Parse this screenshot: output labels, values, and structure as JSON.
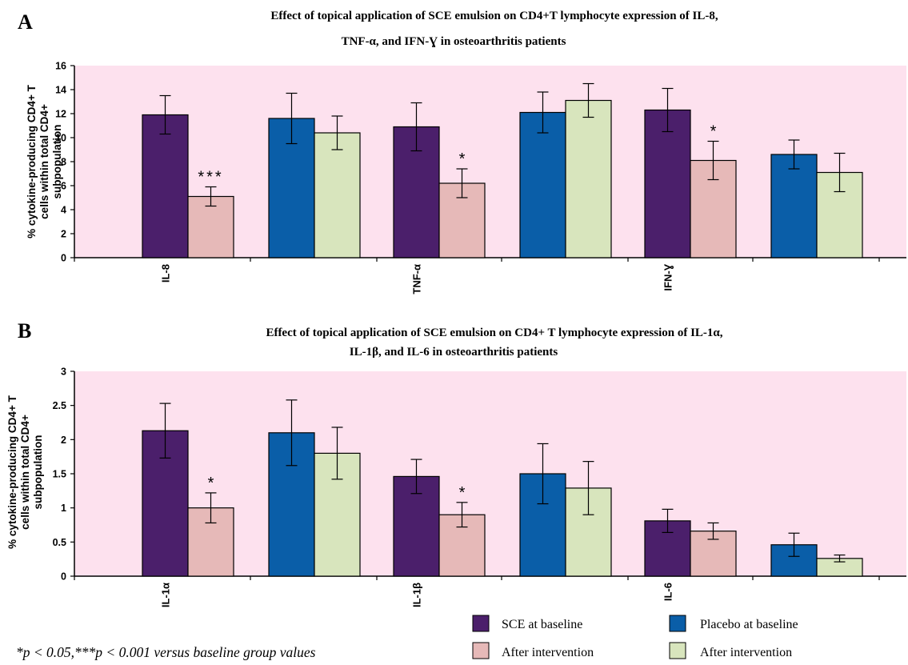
{
  "chart_data": [
    {
      "type": "bar",
      "panel": "A",
      "title": "Effect of topical application of SCE emulsion  on CD4+T lymphocyte expression of IL-8,",
      "title_line2": "TNF-α, and IFN-Ɣ in osteoarthritis patients",
      "ylabel": [
        "% cytokine-producing CD4+ T",
        "cells within total CD4+",
        "subpopulation"
      ],
      "ylim": [
        0,
        16
      ],
      "yticks": [
        "0",
        "2",
        "4",
        "6",
        "8",
        "10",
        "12",
        "14",
        "16"
      ],
      "tick_values": [
        0,
        2,
        4,
        6,
        8,
        10,
        12,
        14,
        16
      ],
      "categories": [
        "IL-8",
        "",
        "TNF-α",
        "",
        "IFN-Ɣ",
        ""
      ],
      "bars": [
        {
          "group": 0,
          "slot": 0,
          "series": 0,
          "value": 11.9,
          "err": 1.6,
          "sig": ""
        },
        {
          "group": 0,
          "slot": 1,
          "series": 1,
          "value": 5.1,
          "err": 0.8,
          "sig": "***"
        },
        {
          "group": 1,
          "slot": 0,
          "series": 2,
          "value": 11.6,
          "err": 2.1,
          "sig": ""
        },
        {
          "group": 1,
          "slot": 1,
          "series": 3,
          "value": 10.4,
          "err": 1.4,
          "sig": ""
        },
        {
          "group": 2,
          "slot": 0,
          "series": 0,
          "value": 10.9,
          "err": 2.0,
          "sig": ""
        },
        {
          "group": 2,
          "slot": 1,
          "series": 1,
          "value": 6.2,
          "err": 1.2,
          "sig": "*"
        },
        {
          "group": 3,
          "slot": 0,
          "series": 2,
          "value": 12.1,
          "err": 1.7,
          "sig": ""
        },
        {
          "group": 3,
          "slot": 1,
          "series": 3,
          "value": 13.1,
          "err": 1.4,
          "sig": ""
        },
        {
          "group": 4,
          "slot": 0,
          "series": 0,
          "value": 12.3,
          "err": 1.8,
          "sig": ""
        },
        {
          "group": 4,
          "slot": 1,
          "series": 1,
          "value": 8.1,
          "err": 1.6,
          "sig": "*"
        },
        {
          "group": 5,
          "slot": 0,
          "series": 2,
          "value": 8.6,
          "err": 1.2,
          "sig": ""
        },
        {
          "group": 5,
          "slot": 1,
          "series": 3,
          "value": 7.1,
          "err": 1.6,
          "sig": ""
        }
      ]
    },
    {
      "type": "bar",
      "panel": "B",
      "title": "Effect of topical application of SCE emulsion on CD4+ T lymphocyte expression of IL-1α,",
      "title_line2": "IL-1β, and IL-6 in osteoarthritis patients",
      "ylabel": [
        "% cytokine-producing CD4+ T",
        "cells within total CD4+",
        "subpopulation"
      ],
      "ylim": [
        0,
        3
      ],
      "yticks": [
        "0",
        "0.5",
        "1",
        "1.5",
        "2",
        "2.5",
        "3"
      ],
      "tick_values": [
        0,
        0.5,
        1,
        1.5,
        2,
        2.5,
        3
      ],
      "categories": [
        "IL-1α",
        "",
        "IL-1β",
        "",
        "IL-6",
        ""
      ],
      "bars": [
        {
          "group": 0,
          "slot": 0,
          "series": 0,
          "value": 2.13,
          "err": 0.4,
          "sig": ""
        },
        {
          "group": 0,
          "slot": 1,
          "series": 1,
          "value": 1.0,
          "err": 0.22,
          "sig": "*"
        },
        {
          "group": 1,
          "slot": 0,
          "series": 2,
          "value": 2.1,
          "err": 0.48,
          "sig": ""
        },
        {
          "group": 1,
          "slot": 1,
          "series": 3,
          "value": 1.8,
          "err": 0.38,
          "sig": ""
        },
        {
          "group": 2,
          "slot": 0,
          "series": 0,
          "value": 1.46,
          "err": 0.25,
          "sig": ""
        },
        {
          "group": 2,
          "slot": 1,
          "series": 1,
          "value": 0.9,
          "err": 0.18,
          "sig": "*"
        },
        {
          "group": 3,
          "slot": 0,
          "series": 2,
          "value": 1.5,
          "err": 0.44,
          "sig": ""
        },
        {
          "group": 3,
          "slot": 1,
          "series": 3,
          "value": 1.29,
          "err": 0.39,
          "sig": ""
        },
        {
          "group": 4,
          "slot": 0,
          "series": 0,
          "value": 0.81,
          "err": 0.17,
          "sig": ""
        },
        {
          "group": 4,
          "slot": 1,
          "series": 1,
          "value": 0.66,
          "err": 0.12,
          "sig": ""
        },
        {
          "group": 5,
          "slot": 0,
          "series": 2,
          "value": 0.46,
          "err": 0.17,
          "sig": ""
        },
        {
          "group": 5,
          "slot": 1,
          "series": 3,
          "value": 0.26,
          "err": 0.05,
          "sig": ""
        }
      ]
    }
  ],
  "series": [
    {
      "name": "SCE at baseline",
      "color": "#4b1f6b"
    },
    {
      "name": "After intervention",
      "color": "#e6b9b8"
    },
    {
      "name": "Placebo at baseline",
      "color": "#0a5ea8"
    },
    {
      "name": "After intervention",
      "color": "#d8e5bd"
    }
  ],
  "plot_background": "#fde1ee",
  "footnote": "*p < 0.05,***p < 0.001 versus baseline group values"
}
